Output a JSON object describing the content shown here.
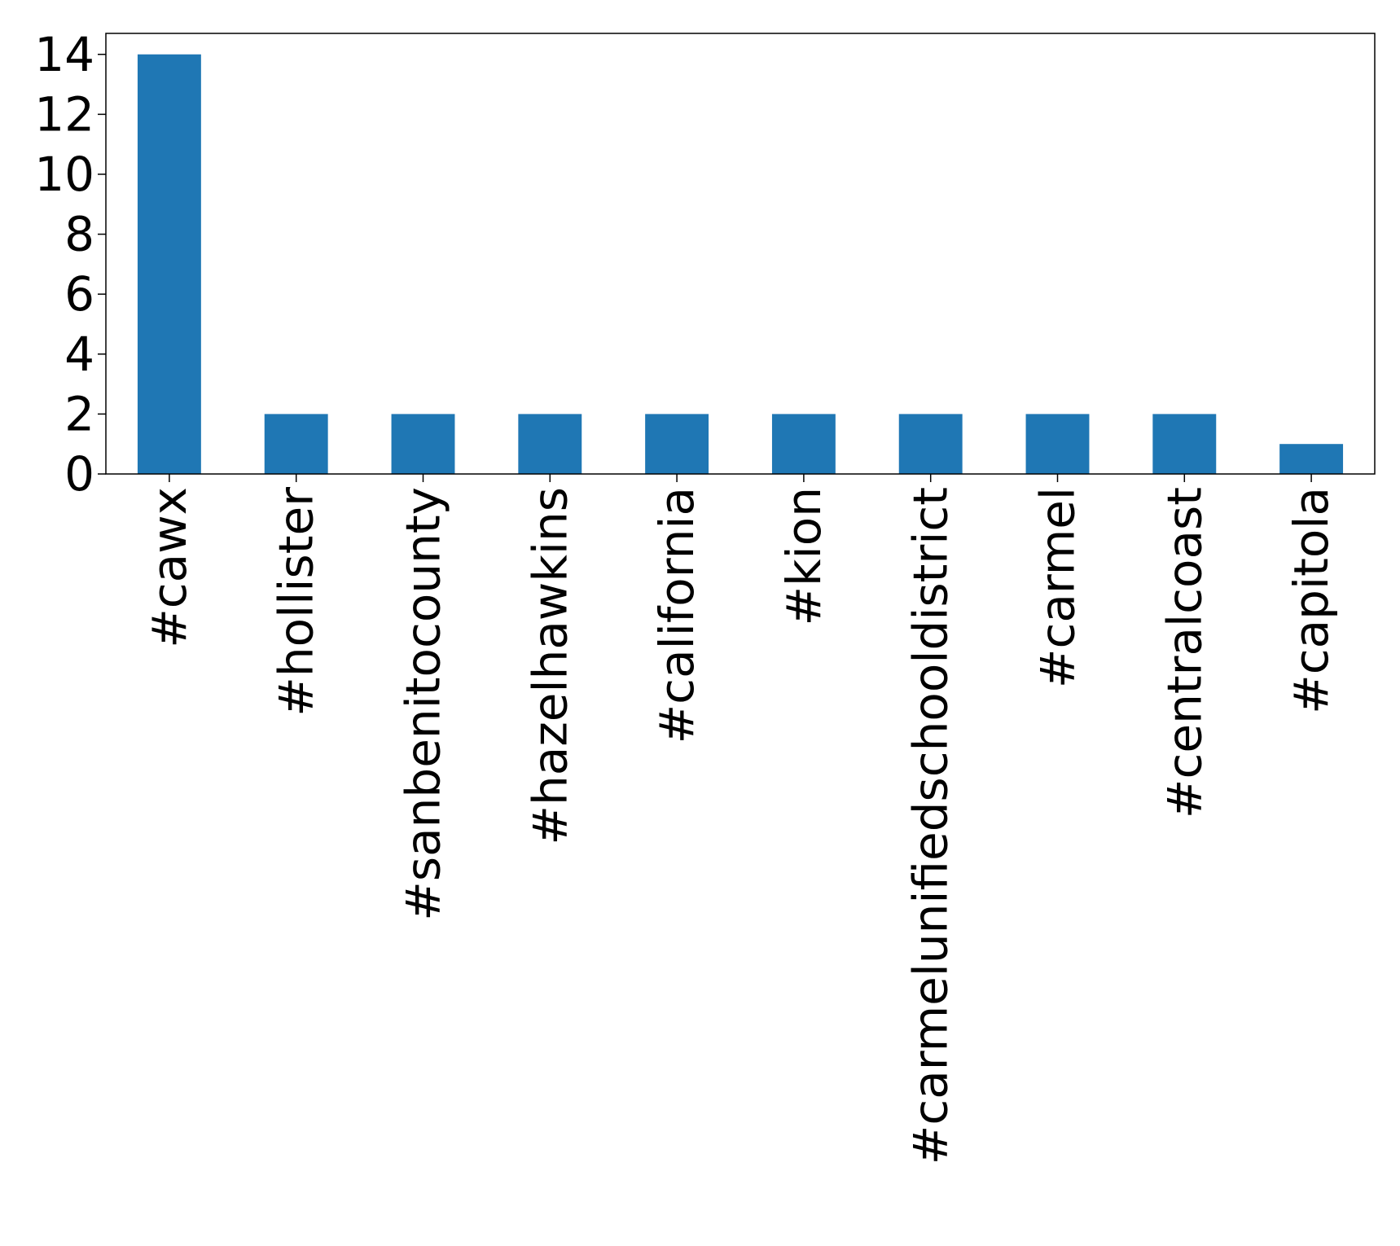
{
  "chart_data": {
    "type": "bar",
    "categories": [
      "#cawx",
      "#hollister",
      "#sanbenitocounty",
      "#hazelhawkins",
      "#california",
      "#kion",
      "#carmelunifiedschooldistrict",
      "#carmel",
      "#centralcoast",
      "#capitola"
    ],
    "values": [
      14,
      2,
      2,
      2,
      2,
      2,
      2,
      2,
      2,
      1
    ],
    "title": "",
    "xlabel": "",
    "ylabel": "",
    "ylim": [
      0,
      14.7
    ],
    "yticks": [
      "0",
      "2",
      "4",
      "6",
      "8",
      "10",
      "12",
      "14"
    ],
    "grid": false,
    "legend": "none",
    "colors": {
      "bar": "#1f77b4",
      "axis": "#000000",
      "background": "#ffffff"
    }
  }
}
